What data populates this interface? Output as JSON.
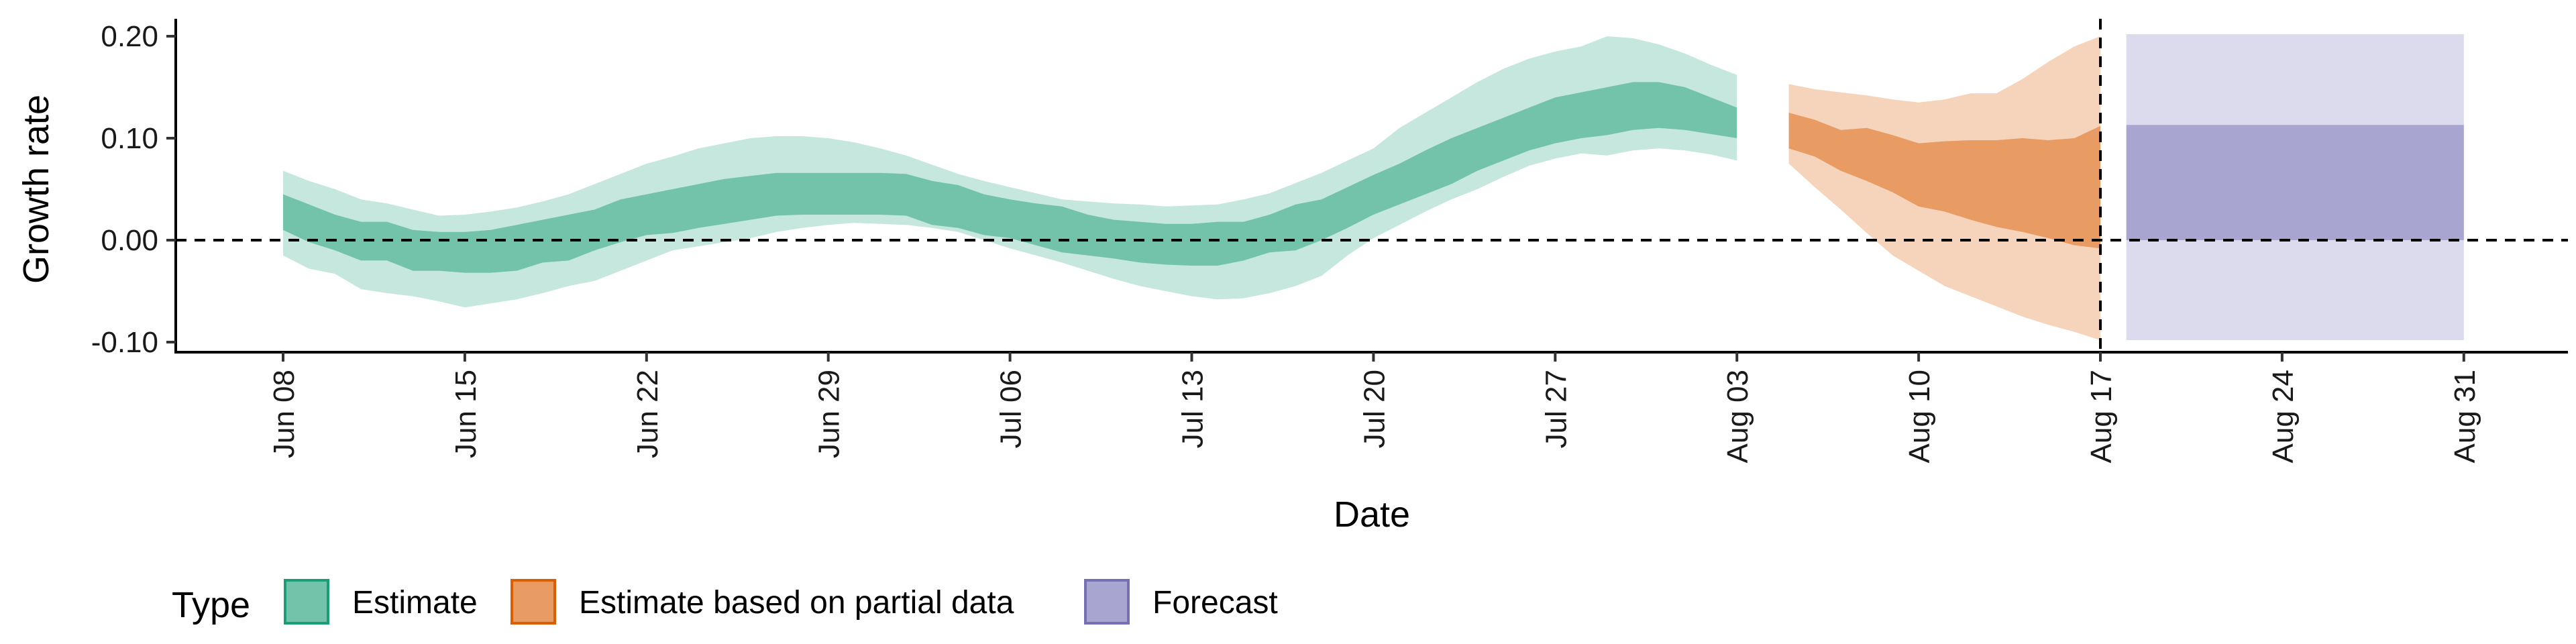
{
  "chart_data": {
    "type": "area",
    "xlabel": "Date",
    "ylabel": "Growth rate",
    "x_ticks": [
      "Jun 08",
      "Jun 15",
      "Jun 22",
      "Jun 29",
      "Jul 06",
      "Jul 13",
      "Jul 20",
      "Jul 27",
      "Aug 03",
      "Aug 10",
      "Aug 17",
      "Aug 24",
      "Aug 31"
    ],
    "x_tick_day_offsets": [
      0,
      7,
      14,
      21,
      28,
      35,
      42,
      49,
      56,
      63,
      70,
      77,
      84
    ],
    "y_ticks": [
      "-0.10",
      "0.00",
      "0.10",
      "0.20"
    ],
    "y_tick_values": [
      -0.1,
      0.0,
      0.1,
      0.2
    ],
    "ylim": [
      -0.11,
      0.215
    ],
    "xlim_days": [
      -4,
      88
    ],
    "reference_lines": {
      "horizontal_y": 0.0,
      "vertical_date": "Aug 17"
    },
    "legend": {
      "title": "Type",
      "position": "bottom",
      "entries": [
        {
          "label": "Estimate",
          "fill": "#73c3aa",
          "stroke": "#1b9e77"
        },
        {
          "label": "Estimate based on partial data",
          "fill": "#e89b62",
          "stroke": "#d95f02"
        },
        {
          "label": "Forecast",
          "fill": "#a9a5d1",
          "stroke": "#7570b3"
        }
      ]
    },
    "series": [
      {
        "name": "Estimate",
        "color_inner": "#73c3aa",
        "color_outer": "#c6e7dd",
        "days": [
          0,
          1,
          2,
          3,
          4,
          5,
          6,
          7,
          8,
          9,
          10,
          11,
          12,
          13,
          14,
          15,
          16,
          17,
          18,
          19,
          20,
          21,
          22,
          23,
          24,
          25,
          26,
          27,
          28,
          29,
          30,
          31,
          32,
          33,
          34,
          35,
          36,
          37,
          38,
          39,
          40,
          41,
          42,
          43,
          44,
          45,
          46,
          47,
          48,
          49,
          50,
          51,
          52,
          53,
          54,
          55,
          56
        ],
        "lower90": [
          -0.015,
          -0.028,
          -0.033,
          -0.048,
          -0.052,
          -0.055,
          -0.06,
          -0.066,
          -0.062,
          -0.058,
          -0.052,
          -0.045,
          -0.04,
          -0.03,
          -0.02,
          -0.01,
          -0.006,
          -0.002,
          0.002,
          0.008,
          0.012,
          0.015,
          0.017,
          0.016,
          0.015,
          0.012,
          0.008,
          0.0,
          -0.008,
          -0.015,
          -0.022,
          -0.03,
          -0.038,
          -0.045,
          -0.05,
          -0.055,
          -0.058,
          -0.057,
          -0.052,
          -0.045,
          -0.035,
          -0.015,
          0.002,
          0.015,
          0.028,
          0.04,
          0.05,
          0.062,
          0.073,
          0.08,
          0.085,
          0.083,
          0.088,
          0.09,
          0.088,
          0.084,
          0.078
        ],
        "lower50": [
          0.01,
          -0.002,
          -0.01,
          -0.02,
          -0.02,
          -0.03,
          -0.03,
          -0.032,
          -0.032,
          -0.03,
          -0.022,
          -0.02,
          -0.01,
          -0.002,
          0.005,
          0.007,
          0.012,
          0.016,
          0.02,
          0.024,
          0.025,
          0.025,
          0.025,
          0.025,
          0.024,
          0.015,
          0.012,
          0.005,
          0.002,
          -0.005,
          -0.012,
          -0.015,
          -0.018,
          -0.022,
          -0.024,
          -0.025,
          -0.025,
          -0.02,
          -0.012,
          -0.01,
          0.0,
          0.012,
          0.025,
          0.035,
          0.045,
          0.055,
          0.068,
          0.078,
          0.088,
          0.095,
          0.1,
          0.103,
          0.108,
          0.11,
          0.108,
          0.104,
          0.1
        ],
        "upper50": [
          0.045,
          0.035,
          0.025,
          0.018,
          0.018,
          0.01,
          0.008,
          0.008,
          0.01,
          0.015,
          0.02,
          0.025,
          0.03,
          0.04,
          0.045,
          0.05,
          0.055,
          0.06,
          0.063,
          0.066,
          0.066,
          0.066,
          0.066,
          0.066,
          0.065,
          0.058,
          0.054,
          0.045,
          0.04,
          0.036,
          0.033,
          0.025,
          0.02,
          0.018,
          0.016,
          0.016,
          0.018,
          0.018,
          0.025,
          0.035,
          0.04,
          0.052,
          0.064,
          0.075,
          0.088,
          0.1,
          0.11,
          0.12,
          0.13,
          0.14,
          0.145,
          0.15,
          0.155,
          0.155,
          0.15,
          0.14,
          0.13
        ],
        "upper90": [
          0.068,
          0.058,
          0.05,
          0.04,
          0.036,
          0.03,
          0.024,
          0.025,
          0.028,
          0.032,
          0.038,
          0.045,
          0.055,
          0.065,
          0.075,
          0.082,
          0.09,
          0.095,
          0.1,
          0.102,
          0.102,
          0.1,
          0.096,
          0.09,
          0.083,
          0.074,
          0.065,
          0.058,
          0.052,
          0.046,
          0.04,
          0.038,
          0.036,
          0.035,
          0.033,
          0.034,
          0.035,
          0.04,
          0.046,
          0.056,
          0.066,
          0.078,
          0.09,
          0.11,
          0.125,
          0.14,
          0.155,
          0.168,
          0.178,
          0.185,
          0.19,
          0.2,
          0.198,
          0.192,
          0.183,
          0.172,
          0.162
        ]
      },
      {
        "name": "Estimate based on partial data",
        "color_inner": "#e89b62",
        "color_outer": "#f6d3bb",
        "days": [
          58,
          59,
          60,
          61,
          62,
          63,
          64,
          65,
          66,
          67,
          68,
          69,
          70
        ],
        "lower90": [
          0.075,
          0.052,
          0.03,
          0.007,
          -0.015,
          -0.03,
          -0.045,
          -0.055,
          -0.065,
          -0.075,
          -0.083,
          -0.09,
          -0.098
        ],
        "lower50": [
          0.09,
          0.082,
          0.068,
          0.058,
          0.047,
          0.033,
          0.028,
          0.02,
          0.013,
          0.008,
          0.002,
          -0.005,
          -0.008
        ],
        "upper50": [
          0.125,
          0.118,
          0.108,
          0.11,
          0.103,
          0.095,
          0.097,
          0.098,
          0.098,
          0.1,
          0.098,
          0.1,
          0.112
        ],
        "upper90": [
          0.153,
          0.148,
          0.145,
          0.142,
          0.138,
          0.135,
          0.138,
          0.144,
          0.144,
          0.158,
          0.175,
          0.19,
          0.2
        ]
      },
      {
        "name": "Forecast",
        "color_inner": "#a9a5d1",
        "color_outer": "#dcdbed",
        "days": [
          71,
          84
        ],
        "lower90": [
          -0.098,
          -0.098
        ],
        "lower50": [
          0.0,
          0.0
        ],
        "upper50": [
          0.113,
          0.113
        ],
        "upper90": [
          0.202,
          0.202
        ]
      }
    ]
  }
}
